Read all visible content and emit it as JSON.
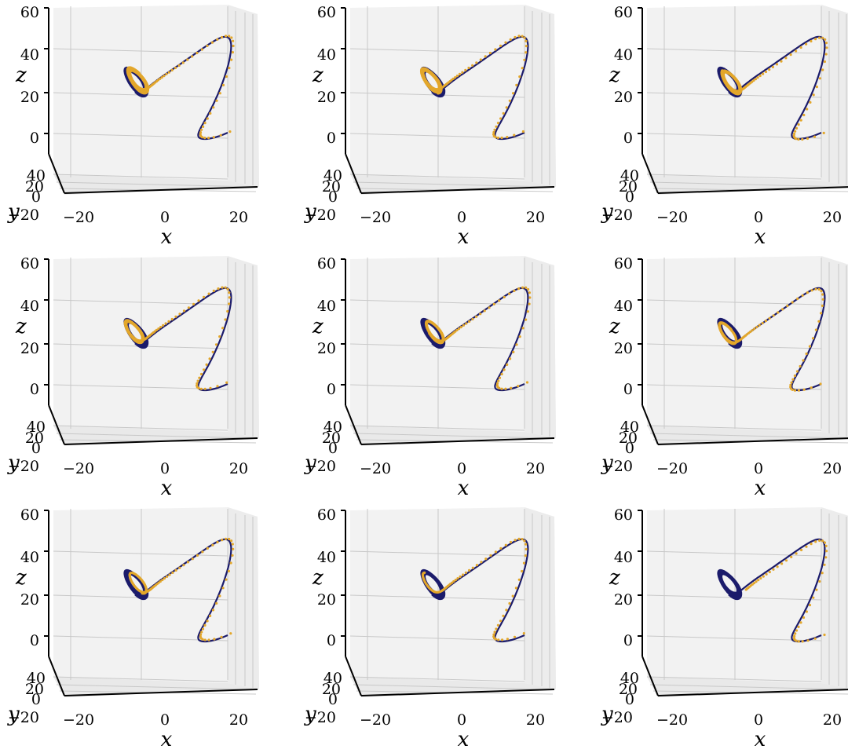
{
  "colors": {
    "reference_trajectory": "#1b1b6b",
    "prediction_points": "#e3a72b",
    "pane_fill": "#f2f2f2",
    "grid": "#c8c8c8"
  },
  "chart_data": [
    {
      "type": "line",
      "variant": 1,
      "xlabel": "x",
      "ylabel": "y",
      "zlabel": "z",
      "xticks": [
        "−20",
        "0",
        "20"
      ],
      "yticks": [
        "0",
        "20",
        "40"
      ],
      "zticks": [
        "0",
        "20",
        "40",
        "60"
      ],
      "xlim": [
        -25,
        25
      ],
      "ylim": [
        -25,
        40
      ],
      "zlim": [
        0,
        60
      ],
      "series": [
        {
          "values_source": "reference"
        },
        {
          "values_source": "prediction"
        }
      ]
    },
    {
      "type": "line",
      "variant": 2,
      "xlabel": "x",
      "ylabel": "y",
      "zlabel": "z",
      "xticks": [
        "−20",
        "0",
        "20"
      ],
      "yticks": [
        "0",
        "20",
        "40"
      ],
      "zticks": [
        "0",
        "20",
        "40",
        "60"
      ],
      "xlim": [
        -25,
        25
      ],
      "ylim": [
        -25,
        40
      ],
      "zlim": [
        0,
        60
      ]
    },
    {
      "type": "line",
      "variant": 3,
      "xlabel": "x",
      "ylabel": "y",
      "zlabel": "z",
      "xticks": [
        "−20",
        "0",
        "20"
      ],
      "yticks": [
        "0",
        "20",
        "40"
      ],
      "zticks": [
        "0",
        "20",
        "40",
        "60"
      ],
      "xlim": [
        -25,
        25
      ],
      "ylim": [
        -25,
        40
      ],
      "zlim": [
        0,
        60
      ]
    },
    {
      "type": "line",
      "variant": 4,
      "xlabel": "x",
      "ylabel": "y",
      "zlabel": "z",
      "xticks": [
        "−20",
        "0",
        "20"
      ],
      "yticks": [
        "0",
        "20",
        "40"
      ],
      "zticks": [
        "0",
        "20",
        "40",
        "60"
      ],
      "xlim": [
        -25,
        25
      ],
      "ylim": [
        -25,
        40
      ],
      "zlim": [
        0,
        60
      ]
    },
    {
      "type": "line",
      "variant": 5,
      "xlabel": "x",
      "ylabel": "y",
      "zlabel": "z",
      "xticks": [
        "−20",
        "0",
        "20"
      ],
      "yticks": [
        "0",
        "20",
        "40"
      ],
      "zticks": [
        "0",
        "20",
        "40",
        "60"
      ],
      "xlim": [
        -25,
        25
      ],
      "ylim": [
        -25,
        40
      ],
      "zlim": [
        0,
        60
      ]
    },
    {
      "type": "line",
      "variant": 6,
      "xlabel": "x",
      "ylabel": "y",
      "zlabel": "z",
      "xticks": [
        "−20",
        "0",
        "20"
      ],
      "yticks": [
        "0",
        "20",
        "40"
      ],
      "zticks": [
        "0",
        "20",
        "40",
        "60"
      ],
      "xlim": [
        -25,
        25
      ],
      "ylim": [
        -25,
        40
      ],
      "zlim": [
        0,
        60
      ]
    },
    {
      "type": "line",
      "variant": 7,
      "xlabel": "x",
      "ylabel": "y",
      "zlabel": "z",
      "xticks": [
        "−20",
        "0",
        "20"
      ],
      "yticks": [
        "0",
        "20",
        "40"
      ],
      "zticks": [
        "0",
        "20",
        "40",
        "60"
      ],
      "xlim": [
        -25,
        25
      ],
      "ylim": [
        -25,
        40
      ],
      "zlim": [
        0,
        60
      ]
    },
    {
      "type": "line",
      "variant": 8,
      "xlabel": "x",
      "ylabel": "y",
      "zlabel": "z",
      "xticks": [
        "−20",
        "0",
        "20"
      ],
      "yticks": [
        "0",
        "20",
        "40"
      ],
      "zticks": [
        "0",
        "20",
        "40",
        "60"
      ],
      "xlim": [
        -25,
        25
      ],
      "ylim": [
        -25,
        40
      ],
      "zlim": [
        0,
        60
      ]
    },
    {
      "type": "line",
      "variant": 9,
      "xlabel": "x",
      "ylabel": "y",
      "zlabel": "z",
      "xticks": [
        "−20",
        "0",
        "20"
      ],
      "yticks": [
        "0",
        "20",
        "40"
      ],
      "zticks": [
        "0",
        "20",
        "40",
        "60"
      ],
      "xlim": [
        -25,
        25
      ],
      "ylim": [
        -25,
        40
      ],
      "zlim": [
        0,
        60
      ]
    }
  ]
}
